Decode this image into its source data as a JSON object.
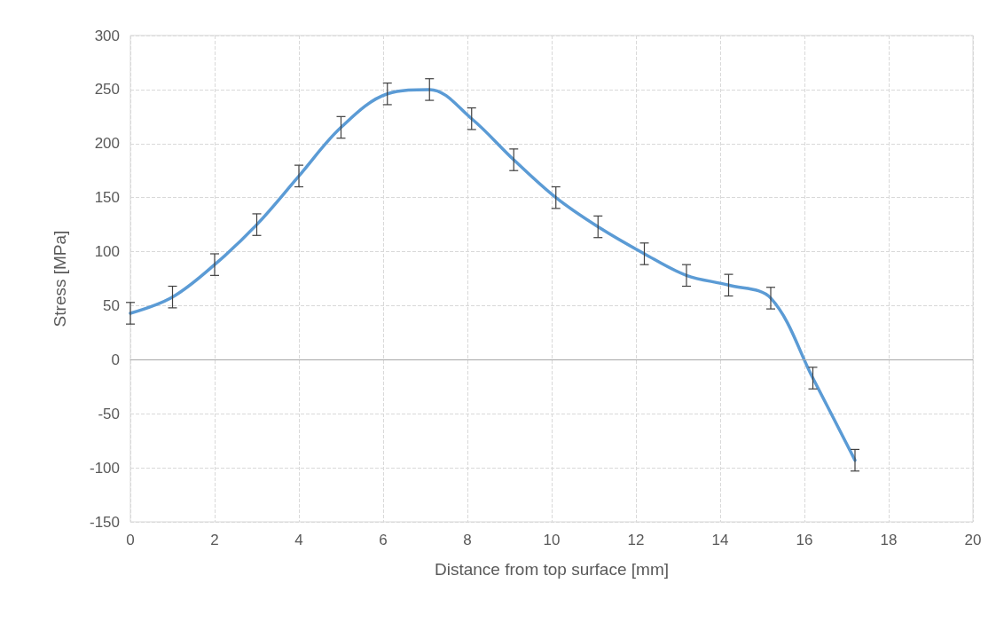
{
  "chart_data": {
    "type": "line",
    "xlabel": "Distance from top surface [mm]",
    "ylabel": "Stress [MPa]",
    "x": [
      0,
      1.0,
      2.0,
      3.0,
      4.0,
      5.0,
      6.1,
      7.1,
      8.1,
      9.1,
      10.1,
      11.1,
      12.2,
      13.2,
      14.2,
      15.2,
      16.2,
      17.2
    ],
    "series": [
      {
        "color": "#5b9bd5",
        "values": [
          43,
          58,
          88,
          125,
          170,
          215,
          246,
          250,
          223,
          185,
          150,
          123,
          98,
          78,
          69,
          57,
          -17,
          -93
        ],
        "errors": [
          10,
          10,
          10,
          10,
          10,
          10,
          10,
          10,
          10,
          10,
          10,
          10,
          10,
          10,
          10,
          10,
          10,
          10
        ]
      }
    ],
    "xlim": [
      0,
      20
    ],
    "xticks": [
      0,
      2,
      4,
      6,
      8,
      10,
      12,
      14,
      16,
      18,
      20
    ],
    "ylim": [
      -150,
      300
    ],
    "yticks": [
      -150,
      -100,
      -50,
      0,
      50,
      100,
      150,
      200,
      250,
      300
    ],
    "grid": true,
    "marker": "none",
    "line_style": "solid"
  }
}
